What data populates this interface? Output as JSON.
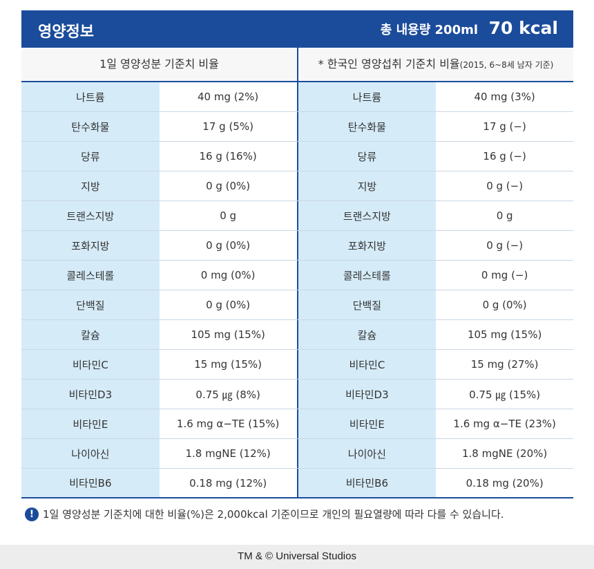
{
  "header": {
    "title": "영양정보",
    "content_label": "총 내용량 200ml",
    "kcal": "70 kcal"
  },
  "table": {
    "headers": {
      "left": "1일 영양성분 기준치 비율",
      "right": "* 한국인 영양섭취 기준치 비율",
      "right_note": "(2015, 6~8세 남자 기준)"
    },
    "rows": [
      [
        "나트륨",
        "40 mg (2%)",
        "나트륨",
        "40 mg (3%)"
      ],
      [
        "탄수화물",
        "17 g (5%)",
        "탄수화물",
        "17 g (−)"
      ],
      [
        "당류",
        "16 g (16%)",
        "당류",
        "16 g (−)"
      ],
      [
        "지방",
        "0 g (0%)",
        "지방",
        "0 g (−)"
      ],
      [
        "트랜스지방",
        "0 g",
        "트랜스지방",
        "0 g"
      ],
      [
        "포화지방",
        "0 g (0%)",
        "포화지방",
        "0 g (−)"
      ],
      [
        "콜레스테롤",
        "0 mg (0%)",
        "콜레스테롤",
        "0 mg (−)"
      ],
      [
        "단백질",
        "0 g (0%)",
        "단백질",
        "0 g (0%)"
      ],
      [
        "칼슘",
        "105 mg (15%)",
        "칼슘",
        "105 mg (15%)"
      ],
      [
        "비타민C",
        "15 mg (15%)",
        "비타민C",
        "15 mg (27%)"
      ],
      [
        "비타민D3",
        "0.75 ㎍ (8%)",
        "비타민D3",
        "0.75 ㎍ (15%)"
      ],
      [
        "비타민E",
        "1.6 mg α−TE (15%)",
        "비타민E",
        "1.6 mg α−TE (23%)"
      ],
      [
        "나이아신",
        "1.8 mgNE (12%)",
        "나이아신",
        "1.8 mgNE (20%)"
      ],
      [
        "비타민B6",
        "0.18 mg (12%)",
        "비타민B6",
        "0.18 mg (20%)"
      ]
    ]
  },
  "note": "1일 영양성분 기준치에 대한 비율(%)은 2,000kcal 기준이므로 개인의 필요열량에 따라 다를 수 있습니다.",
  "footer": "TM & © Universal Studios"
}
